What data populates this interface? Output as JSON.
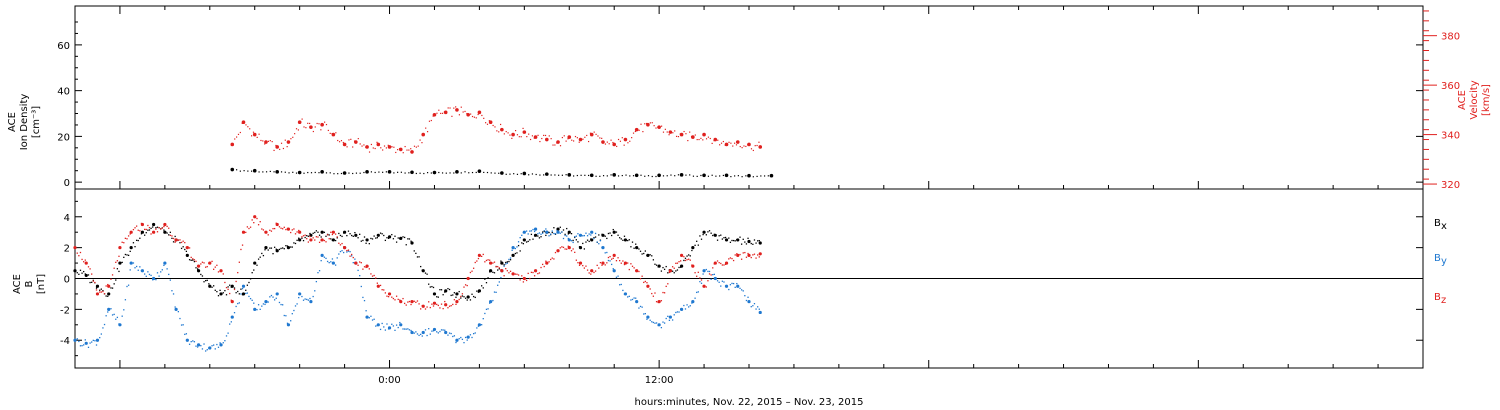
{
  "colors": {
    "black": "#000000",
    "blue": "#1f78d0",
    "red": "#e0201e",
    "axis": "#000000"
  },
  "chart_data": [
    {
      "type": "scatter",
      "panel": "plasma",
      "ylabel_lines": [
        "ACE",
        "Ion Density",
        "[cm⁻³]"
      ],
      "ylabel_right_lines": [
        "ACE",
        "Velocity",
        "[km/s]"
      ],
      "ylim": [
        -3,
        77
      ],
      "ylim_right": [
        318,
        392
      ],
      "yticks": [
        0,
        20,
        40,
        60
      ],
      "yticks_right": [
        320,
        340,
        360,
        380
      ],
      "series": [
        {
          "name": "Ion Density",
          "axis": "left",
          "color": "#000000",
          "x": [
            -7.0,
            -6.0,
            -5.0,
            -4.0,
            -3.0,
            -2.0,
            -1.0,
            0.0,
            1.0,
            2.0,
            3.0,
            4.0,
            5.0,
            6.0,
            7.0,
            8.0,
            9.0,
            10.0,
            11.0,
            12.0,
            13.0,
            14.0,
            15.0,
            16.0,
            17.0
          ],
          "y": [
            5.5,
            5.0,
            4.5,
            4.2,
            4.5,
            4.0,
            4.5,
            4.5,
            4.3,
            4.2,
            4.5,
            4.8,
            4.0,
            3.8,
            3.5,
            3.2,
            3.0,
            3.2,
            3.0,
            3.0,
            3.2,
            3.0,
            3.0,
            2.8,
            2.8
          ]
        },
        {
          "name": "Velocity",
          "axis": "right",
          "color": "#e0201e",
          "x": [
            -7.0,
            -6.5,
            -6.0,
            -5.5,
            -5.0,
            -4.5,
            -4.0,
            -3.5,
            -3.0,
            -2.5,
            -2.0,
            -1.5,
            -1.0,
            -0.5,
            0.0,
            0.5,
            1.0,
            1.5,
            2.0,
            2.5,
            3.0,
            3.5,
            4.0,
            4.5,
            5.0,
            5.5,
            6.0,
            6.5,
            7.0,
            7.5,
            8.0,
            8.5,
            9.0,
            9.5,
            10.0,
            10.5,
            11.0,
            11.5,
            12.0,
            12.5,
            13.0,
            13.5,
            14.0,
            14.5,
            15.0,
            15.5,
            16.0,
            16.5
          ],
          "y": [
            336,
            345,
            340,
            337,
            335,
            337,
            345,
            343,
            344,
            340,
            336,
            337,
            335,
            336,
            335,
            334,
            333,
            340,
            348,
            349,
            350,
            348,
            349,
            345,
            342,
            340,
            341,
            339,
            338,
            337,
            339,
            338,
            340,
            337,
            336,
            338,
            342,
            344,
            343,
            341,
            340,
            339,
            340,
            338,
            336,
            337,
            336,
            335
          ]
        }
      ]
    },
    {
      "type": "scatter",
      "panel": "magnetic",
      "ylabel_lines": [
        "ACE",
        "B",
        "[nT]"
      ],
      "ylim": [
        -5.8,
        5.8
      ],
      "yticks": [
        -4,
        -2,
        0,
        2,
        4
      ],
      "zero_line": true,
      "xlabel": "hours:minutes, Nov. 22, 2015 – Nov. 23, 2015",
      "xlim": [
        -14.0,
        46.0
      ],
      "xticks": [
        0,
        12
      ],
      "xtick_labels": [
        "0:00",
        "12:00"
      ],
      "series": [
        {
          "name": "Bx",
          "legend_main": "B",
          "legend_sub": "x",
          "color": "#000000",
          "x": [
            -14.0,
            -13.5,
            -13.0,
            -12.5,
            -12.0,
            -11.5,
            -11.0,
            -10.5,
            -10.0,
            -9.5,
            -9.0,
            -8.5,
            -8.0,
            -7.5,
            -7.0,
            -6.5,
            -6.0,
            -5.5,
            -5.0,
            -4.5,
            -4.0,
            -3.5,
            -3.0,
            -2.5,
            -2.0,
            -1.5,
            -1.0,
            -0.5,
            0.0,
            0.5,
            1.0,
            1.5,
            2.0,
            2.5,
            3.0,
            3.5,
            4.0,
            4.5,
            5.0,
            5.5,
            6.0,
            6.5,
            7.0,
            7.5,
            8.0,
            8.5,
            9.0,
            9.5,
            10.0,
            10.5,
            11.0,
            11.5,
            12.0,
            12.5,
            13.0,
            13.5,
            14.0,
            14.5,
            15.0,
            15.5,
            16.0,
            16.5
          ],
          "y": [
            0.5,
            0.2,
            -0.5,
            -1.0,
            1.0,
            2.0,
            3.0,
            3.5,
            3.0,
            2.5,
            1.5,
            0.5,
            -0.5,
            -1.0,
            -0.5,
            -1.0,
            1.0,
            2.0,
            1.8,
            2.0,
            2.5,
            2.8,
            3.0,
            2.5,
            3.0,
            2.8,
            2.5,
            2.8,
            2.7,
            2.6,
            2.3,
            0.5,
            -1.0,
            -0.8,
            -1.0,
            -1.2,
            -0.8,
            0.5,
            1.0,
            1.5,
            2.5,
            2.8,
            3.0,
            3.2,
            3.0,
            2.0,
            2.5,
            2.8,
            3.0,
            2.5,
            2.0,
            1.5,
            0.8,
            0.5,
            0.8,
            2.0,
            3.0,
            2.8,
            2.5,
            2.5,
            2.4,
            2.3
          ]
        },
        {
          "name": "By",
          "legend_main": "B",
          "legend_sub": "y",
          "color": "#1f78d0",
          "x": [
            -14.0,
            -13.5,
            -13.0,
            -12.5,
            -12.0,
            -11.5,
            -11.0,
            -10.5,
            -10.0,
            -9.5,
            -9.0,
            -8.5,
            -8.0,
            -7.5,
            -7.0,
            -6.5,
            -6.0,
            -5.5,
            -5.0,
            -4.5,
            -4.0,
            -3.5,
            -3.0,
            -2.5,
            -2.0,
            -1.5,
            -1.0,
            -0.5,
            0.0,
            0.5,
            1.0,
            1.5,
            2.0,
            2.5,
            3.0,
            3.5,
            4.0,
            4.5,
            5.0,
            5.5,
            6.0,
            6.5,
            7.0,
            7.5,
            8.0,
            8.5,
            9.0,
            9.5,
            10.0,
            10.5,
            11.0,
            11.5,
            12.0,
            12.5,
            13.0,
            13.5,
            14.0,
            14.5,
            15.0,
            15.5,
            16.0,
            16.5
          ],
          "y": [
            -4.0,
            -4.2,
            -4.0,
            -2.0,
            -3.0,
            1.0,
            0.5,
            0.0,
            1.0,
            -2.0,
            -4.0,
            -4.3,
            -4.5,
            -4.3,
            -2.5,
            -0.5,
            -2.0,
            -1.5,
            -1.0,
            -3.0,
            -1.0,
            -1.5,
            1.5,
            1.0,
            2.0,
            1.0,
            -2.5,
            -3.0,
            -3.2,
            -3.0,
            -3.5,
            -3.5,
            -3.3,
            -3.5,
            -4.0,
            -3.8,
            -3.0,
            -1.5,
            0.5,
            2.0,
            3.0,
            3.2,
            3.0,
            3.0,
            2.5,
            2.8,
            3.0,
            2.0,
            0.5,
            -1.0,
            -1.5,
            -2.5,
            -3.0,
            -2.5,
            -2.0,
            -1.5,
            0.5,
            0.0,
            -0.5,
            -0.5,
            -1.5,
            -2.2
          ]
        },
        {
          "name": "Bz",
          "legend_main": "B",
          "legend_sub": "z",
          "color": "#e0201e",
          "x": [
            -14.0,
            -13.5,
            -13.0,
            -12.5,
            -12.0,
            -11.5,
            -11.0,
            -10.5,
            -10.0,
            -9.5,
            -9.0,
            -8.5,
            -8.0,
            -7.5,
            -7.0,
            -6.5,
            -6.0,
            -5.5,
            -5.0,
            -4.5,
            -4.0,
            -3.5,
            -3.0,
            -2.5,
            -2.0,
            -1.5,
            -1.0,
            -0.5,
            0.0,
            0.5,
            1.0,
            1.5,
            2.0,
            2.5,
            3.0,
            3.5,
            4.0,
            4.5,
            5.0,
            5.5,
            6.0,
            6.5,
            7.0,
            7.5,
            8.0,
            8.5,
            9.0,
            9.5,
            10.0,
            10.5,
            11.0,
            11.5,
            12.0,
            12.5,
            13.0,
            13.5,
            14.0,
            14.5,
            15.0,
            15.5,
            16.0,
            16.5
          ],
          "y": [
            2.0,
            1.0,
            -1.0,
            -0.5,
            2.0,
            3.0,
            3.5,
            3.0,
            3.5,
            2.5,
            2.0,
            0.8,
            1.0,
            0.5,
            -1.5,
            3.0,
            4.0,
            3.0,
            3.5,
            3.2,
            3.0,
            2.5,
            2.5,
            3.0,
            2.0,
            1.0,
            0.8,
            -0.5,
            -1.0,
            -1.5,
            -1.5,
            -1.8,
            -1.6,
            -1.7,
            -1.5,
            0.0,
            1.5,
            1.0,
            0.5,
            0.3,
            0.0,
            0.5,
            1.0,
            1.8,
            2.0,
            1.0,
            0.5,
            1.0,
            1.5,
            1.0,
            0.5,
            -0.5,
            -1.5,
            0.5,
            1.5,
            0.8,
            -0.5,
            1.0,
            1.0,
            1.5,
            1.5,
            1.6
          ]
        }
      ]
    }
  ]
}
